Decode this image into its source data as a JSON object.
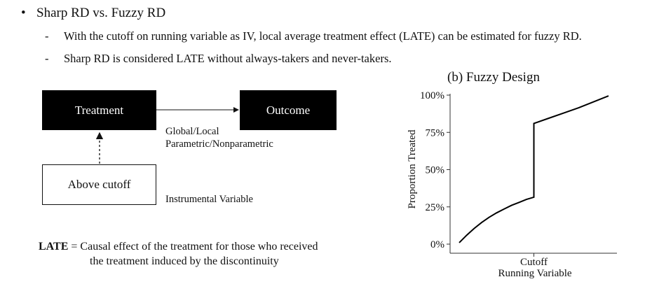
{
  "slide": {
    "bullet": "Sharp RD vs. Fuzzy RD",
    "subpoints": [
      "With the cutoff on running variable as IV, local average treatment effect (LATE) can be estimated for fuzzy RD.",
      "Sharp RD is considered LATE without always-takers and never-takers."
    ]
  },
  "diagram": {
    "treatment": "Treatment",
    "outcome": "Outcome",
    "above_cutoff": "Above cutoff",
    "arrow_label_1": "Global/Local",
    "arrow_label_2": "Parametric/Nonparametric",
    "iv_label": "Instrumental Variable"
  },
  "late_note": {
    "term": "LATE",
    "line1": "= Causal effect of the treatment for those who received",
    "line2": "the treatment induced by the discontinuity"
  },
  "chart_data": {
    "type": "line",
    "title": "(b) Fuzzy Design",
    "xlabel": "Running Variable",
    "ylabel": "Proportion Treated",
    "x_tick_labels": [
      "Cutoff"
    ],
    "y_tick_labels": [
      "0%",
      "25%",
      "50%",
      "75%",
      "100%"
    ],
    "ylim": [
      0,
      100
    ],
    "cutoff_x": 0.5,
    "xlim": [
      0,
      1
    ],
    "series": [
      {
        "segment": "below_cutoff",
        "x": [
          0.0,
          0.05,
          0.1,
          0.15,
          0.2,
          0.25,
          0.3,
          0.35,
          0.4,
          0.45,
          0.5
        ],
        "y": [
          1,
          6,
          10.5,
          14.5,
          18,
          21,
          23.5,
          26,
          28,
          30,
          31.5
        ]
      },
      {
        "segment": "above_cutoff",
        "x": [
          0.5,
          0.6,
          0.7,
          0.8,
          0.9,
          1.0
        ],
        "y": [
          81,
          84.5,
          88,
          91.5,
          95.5,
          99.5
        ]
      }
    ],
    "grid": false,
    "legend": "none",
    "line_color": "#000000"
  }
}
